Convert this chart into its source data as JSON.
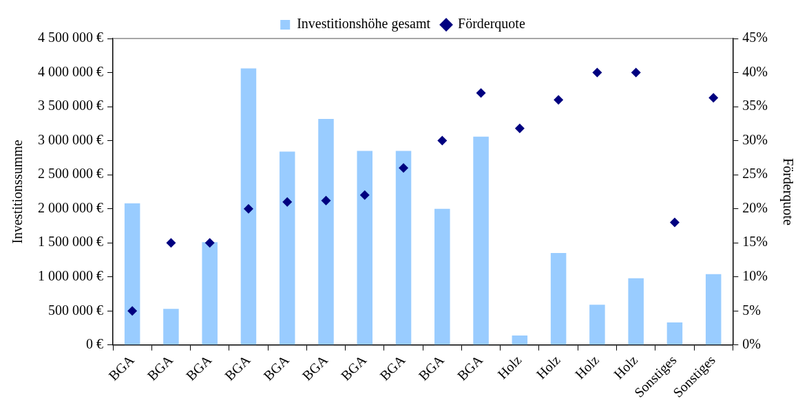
{
  "chart_data": {
    "type": "bar",
    "ylabel": "Investitionssumme",
    "y2label": "Förderquote",
    "categories": [
      "BGA",
      "BGA",
      "BGA",
      "BGA",
      "BGA",
      "BGA",
      "BGA",
      "BGA",
      "BGA",
      "BGA",
      "Holz",
      "Holz",
      "Holz",
      "Holz",
      "Sonstiges",
      "Sonstiges"
    ],
    "series": [
      {
        "name": "Investitionshöhe gesamt",
        "color": "#99ccff",
        "values": [
          2080000,
          530000,
          1510000,
          4060000,
          2840000,
          3320000,
          2850000,
          2850000,
          2000000,
          3060000,
          140000,
          1350000,
          590000,
          980000,
          330000,
          1040000
        ]
      },
      {
        "name": "Förderquote",
        "type": "scatter",
        "axis": "y2",
        "color": "#000080",
        "values": [
          5,
          15,
          15,
          20,
          21,
          21.2,
          22,
          26,
          30,
          37,
          31.8,
          36,
          40,
          40,
          18,
          36.3
        ]
      }
    ],
    "ylim": [
      0,
      4500000
    ],
    "yticks": [
      {
        "value": 0,
        "label": "0 €"
      },
      {
        "value": 500000,
        "label": "500 000 €"
      },
      {
        "value": 1000000,
        "label": "1 000 000 €"
      },
      {
        "value": 1500000,
        "label": "1 500 000 €"
      },
      {
        "value": 2000000,
        "label": "2 000 000 €"
      },
      {
        "value": 2500000,
        "label": "2 500 000 €"
      },
      {
        "value": 3000000,
        "label": "3 000 000 €"
      },
      {
        "value": 3500000,
        "label": "3 500 000 €"
      },
      {
        "value": 4000000,
        "label": "4 000 000 €"
      },
      {
        "value": 4500000,
        "label": "4 500 000 €"
      }
    ],
    "y2lim": [
      0,
      45
    ],
    "y2ticks": [
      {
        "value": 0,
        "label": "0%"
      },
      {
        "value": 5,
        "label": "5%"
      },
      {
        "value": 10,
        "label": "10%"
      },
      {
        "value": 15,
        "label": "15%"
      },
      {
        "value": 20,
        "label": "20%"
      },
      {
        "value": 25,
        "label": "25%"
      },
      {
        "value": 30,
        "label": "30%"
      },
      {
        "value": 35,
        "label": "35%"
      },
      {
        "value": 40,
        "label": "40%"
      },
      {
        "value": 45,
        "label": "45%"
      }
    ],
    "marker": "diamond",
    "grid": false,
    "legend": "top"
  }
}
